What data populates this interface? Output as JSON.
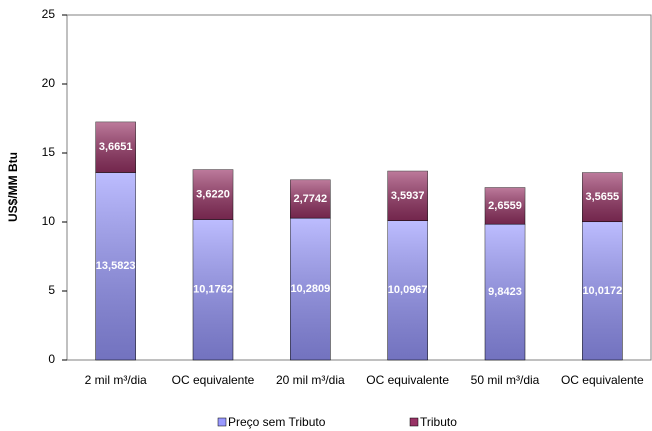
{
  "chart_data": {
    "type": "stacked-bar",
    "y_label": "US$/MM Btu",
    "categories": [
      "2 mil m³/dia",
      "OC equivalente",
      "20 mil m³/dia",
      "OC equivalente",
      "50 mil m³/dia",
      "OC equivalente"
    ],
    "series": [
      {
        "name": "Preço sem Tributo",
        "color": "#9999ff",
        "values": [
          13.5823,
          10.1762,
          10.2809,
          10.0967,
          9.8423,
          10.0172
        ],
        "value_labels": [
          "13,5823",
          "10,1762",
          "10,2809",
          "10,0967",
          "9,8423",
          "10,0172"
        ]
      },
      {
        "name": "Tributo",
        "color": "#993366",
        "values": [
          3.6651,
          3.622,
          2.7742,
          3.5937,
          2.6559,
          3.5655
        ],
        "value_labels": [
          "3,6651",
          "3,6220",
          "2,7742",
          "3,5937",
          "2,6559",
          "3,5655"
        ]
      }
    ],
    "ylim": [
      0,
      25
    ],
    "yticks": [
      0,
      5,
      10,
      15,
      20,
      25
    ],
    "legend": "bottom"
  }
}
